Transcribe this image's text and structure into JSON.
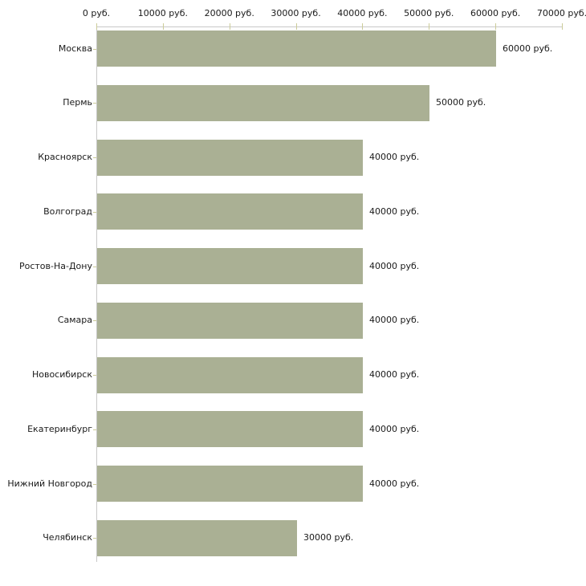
{
  "chart_data": {
    "type": "bar",
    "orientation": "horizontal",
    "title": "",
    "xlabel": "",
    "ylabel": "",
    "grid": false,
    "legend": "none",
    "xlim": [
      0,
      70000
    ],
    "unit_suffix": " руб.",
    "categories": [
      "Москва",
      "Пермь",
      "Красноярск",
      "Волгоград",
      "Ростов-На-Дону",
      "Самара",
      "Новосибирск",
      "Екатеринбург",
      "Нижний Новгород",
      "Челябинск"
    ],
    "values": [
      60000,
      50000,
      40000,
      40000,
      40000,
      40000,
      40000,
      40000,
      40000,
      30000
    ],
    "value_labels": [
      "60000 руб.",
      "50000 руб.",
      "40000 руб.",
      "40000 руб.",
      "40000 руб.",
      "40000 руб.",
      "40000 руб.",
      "40000 руб.",
      "40000 руб.",
      "30000 руб."
    ],
    "x_ticks": [
      0,
      10000,
      20000,
      30000,
      40000,
      50000,
      60000,
      70000
    ],
    "x_tick_labels": [
      "0 руб.",
      "10000 руб.",
      "20000 руб.",
      "30000 руб.",
      "40000 руб.",
      "50000 руб.",
      "60000 руб.",
      "70000 руб."
    ],
    "colors": {
      "bar": "#aab094",
      "axis": "#c8c8c8",
      "tick": "#cccc99",
      "text": "#1a1a1a",
      "background": "#ffffff"
    }
  }
}
